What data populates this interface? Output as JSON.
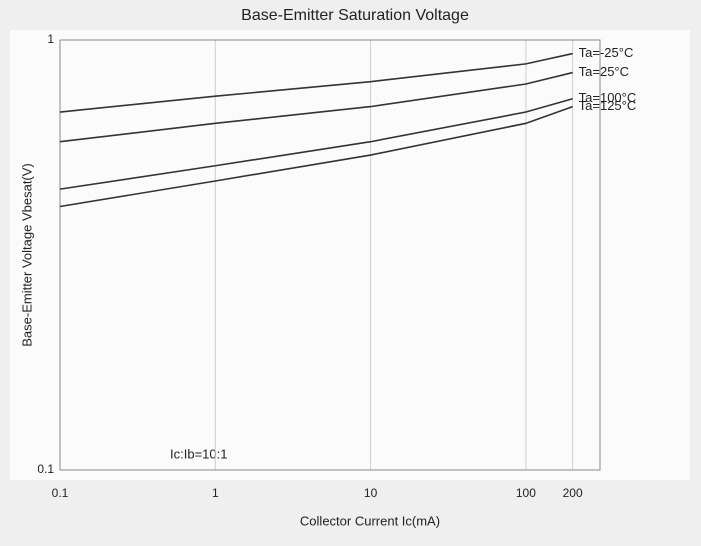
{
  "chart_data": {
    "type": "line",
    "title": "Base-Emitter Saturation Voltage",
    "x_label": "Collector Current Ic(mA)",
    "y_label": "Base-Emitter Voltage Vbesat(V)",
    "annotation": "Ic:Ib=10:1",
    "x": [
      0.1,
      1,
      10,
      100,
      200
    ],
    "xscale": "log",
    "yscale": "log",
    "xlim": [
      0.1,
      300
    ],
    "xticks": [
      0.1,
      1,
      10,
      100,
      200
    ],
    "ylim": [
      0.1,
      1
    ],
    "yticks": [
      0.1,
      1
    ],
    "grid": true,
    "series": [
      {
        "name": "Ta=-25°C",
        "color": "#333333",
        "values": [
          0.68,
          0.74,
          0.8,
          0.88,
          0.93
        ]
      },
      {
        "name": "Ta=25°C",
        "color": "#333333",
        "values": [
          0.58,
          0.64,
          0.7,
          0.79,
          0.84
        ]
      },
      {
        "name": "Ta=100°C",
        "color": "#333333",
        "values": [
          0.45,
          0.51,
          0.58,
          0.68,
          0.73
        ]
      },
      {
        "name": "Ta=125°C",
        "color": "#333333",
        "values": [
          0.41,
          0.47,
          0.54,
          0.64,
          0.7
        ]
      }
    ]
  }
}
